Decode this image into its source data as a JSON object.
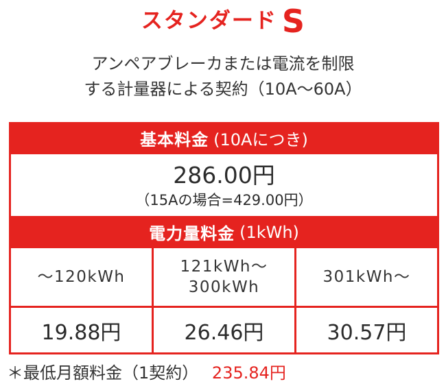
{
  "page": {
    "title_main": "スタンダード",
    "title_suffix": "S",
    "subtitle_line1": "アンペアブレーカまたは電流を制限",
    "subtitle_line2": "する計量器による契約（10A～60A）"
  },
  "basic_charge": {
    "header_label": "基本料金",
    "header_note": "(10Aにつき)",
    "price": "286.00円",
    "price_note": "（15Aの場合=429.00円）"
  },
  "energy_charge": {
    "header_label": "電力量料金",
    "header_note": "(1kWh)",
    "tiers": [
      {
        "range_line1": "～120kWh",
        "range_line2": "",
        "price": "19.88円"
      },
      {
        "range_line1": "121kWh～",
        "range_line2": "300kWh",
        "price": "26.46円"
      },
      {
        "range_line1": "301kWh～",
        "range_line2": "",
        "price": "30.57円"
      }
    ]
  },
  "footer": {
    "note_label": "＊最低月額料金（1契約）",
    "note_value": "235.84円"
  },
  "colors": {
    "brand_red": "#e5231f",
    "text_dark": "#333333"
  }
}
